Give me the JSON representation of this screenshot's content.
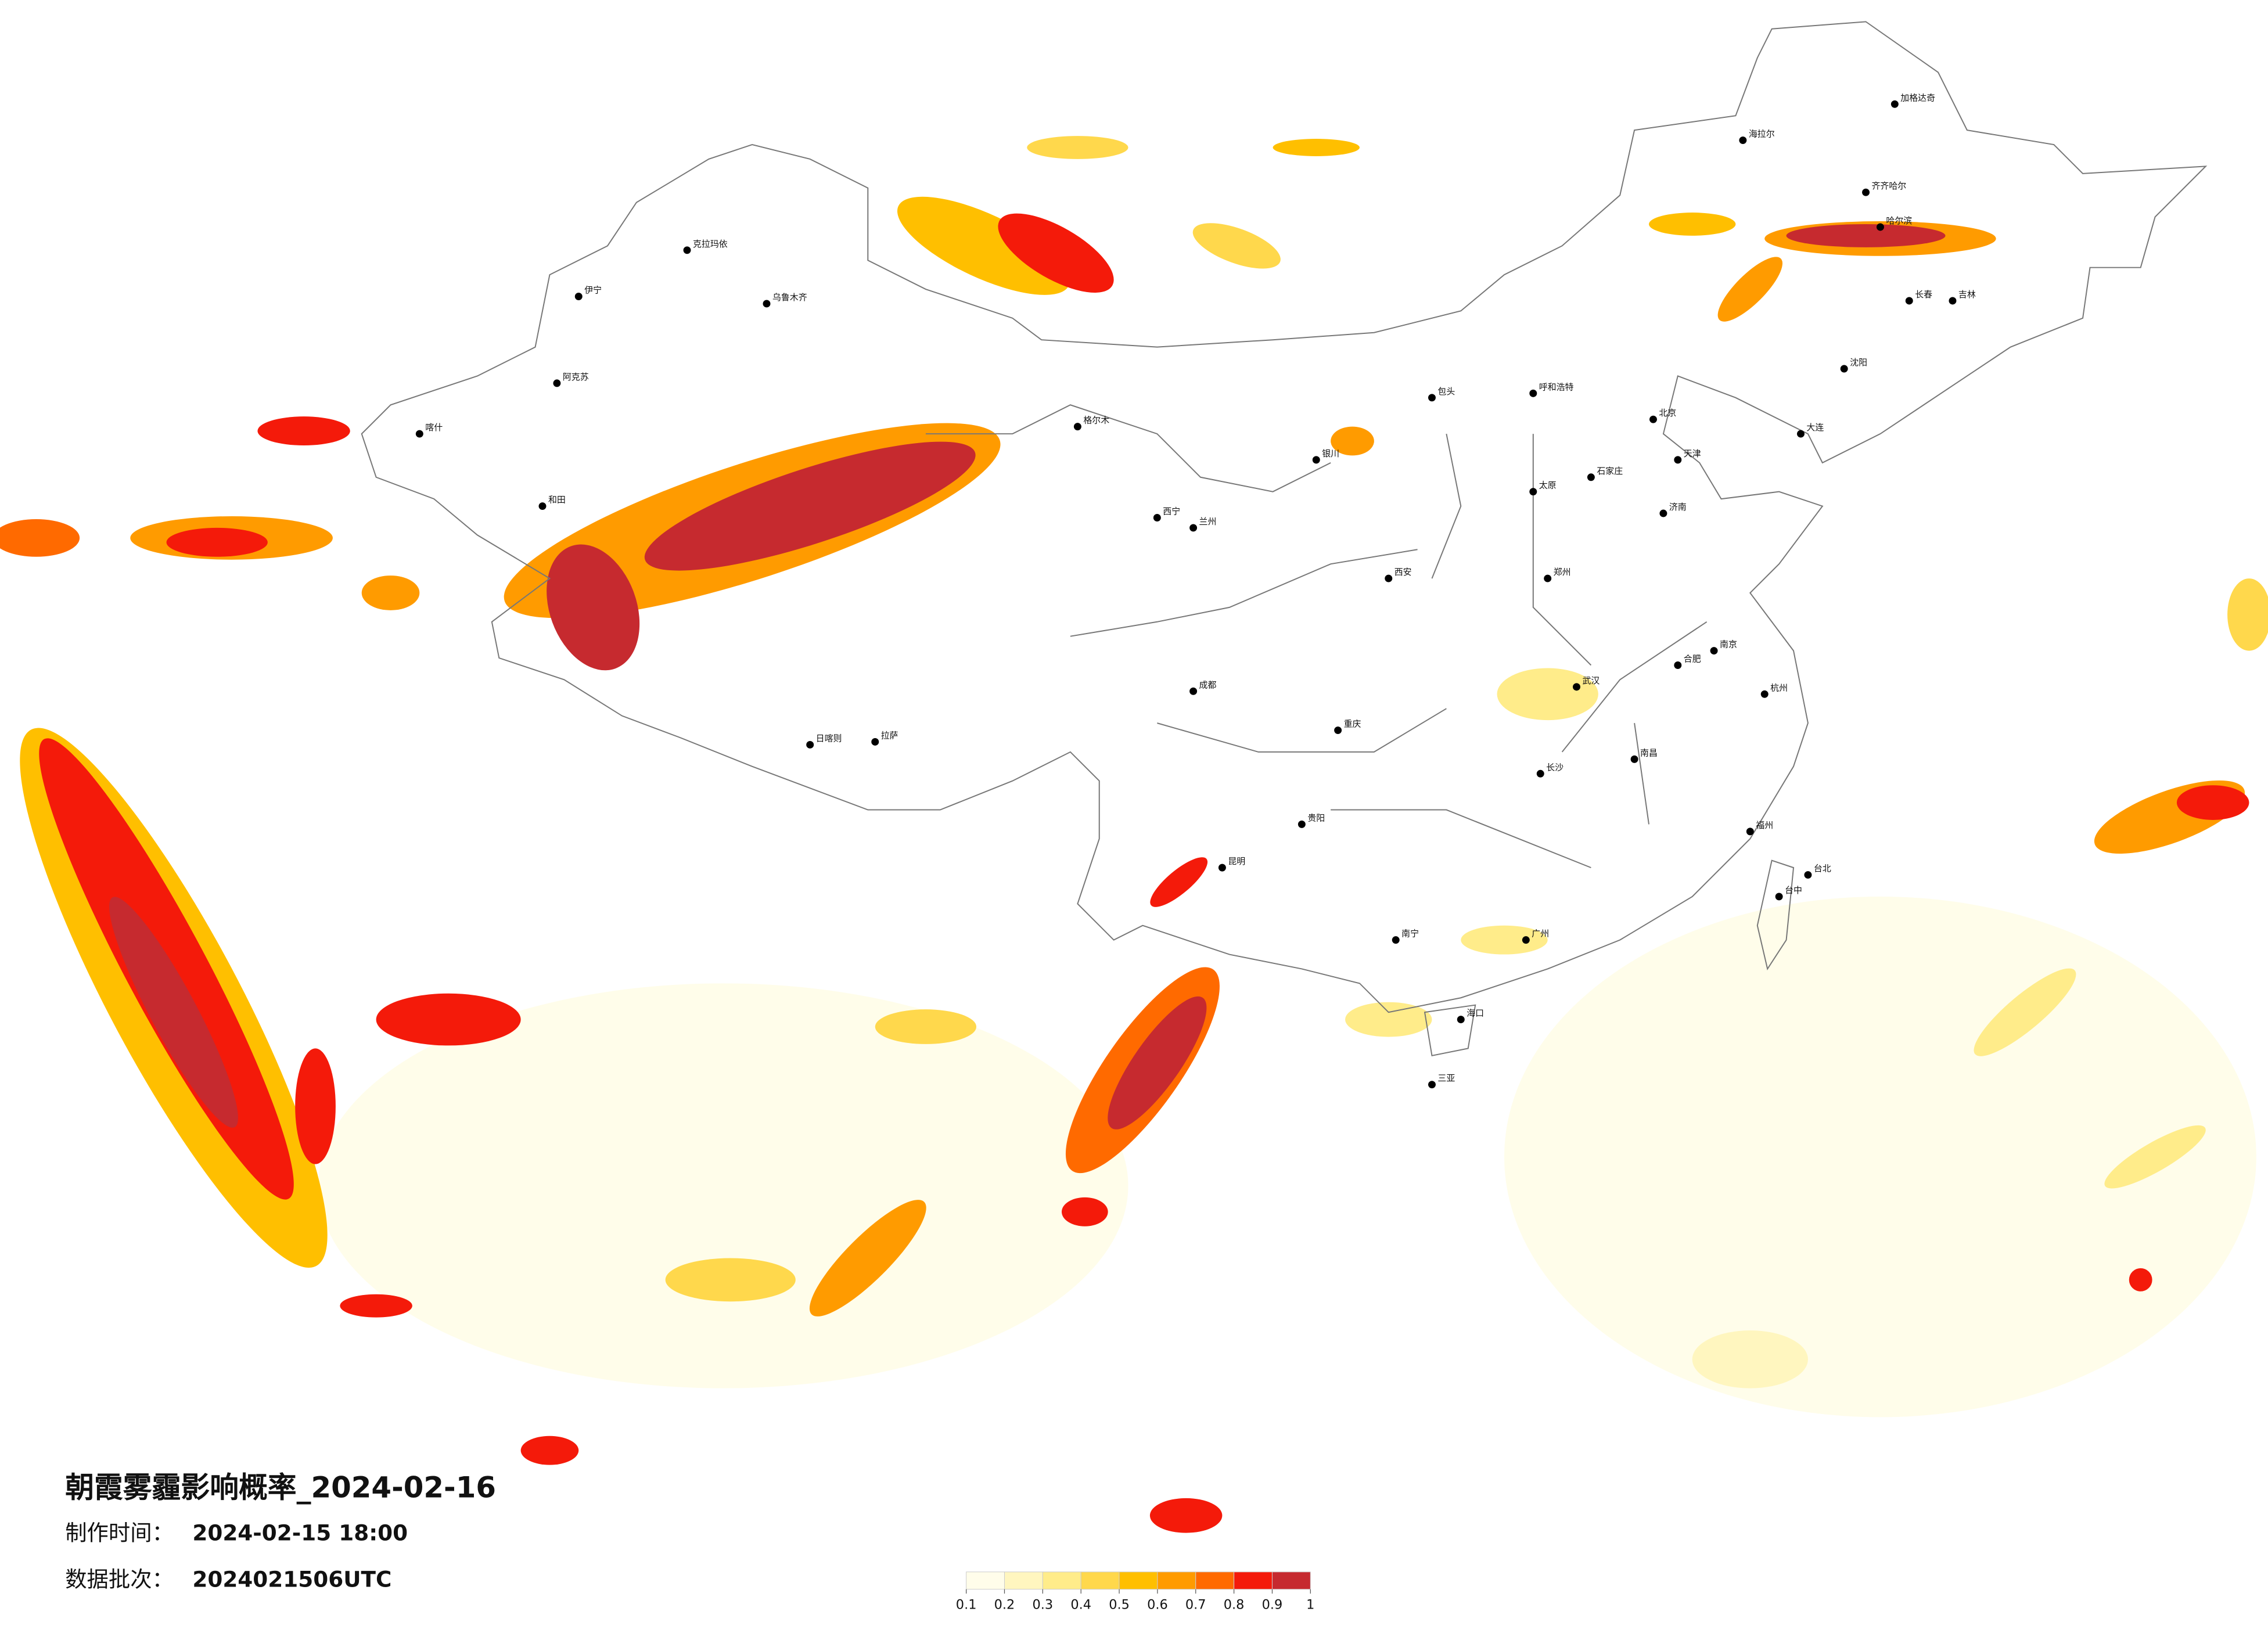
{
  "title": "朝霞雾霾影响概率_2024-02-16",
  "production_time": {
    "label": "制作时间：",
    "value": "2024-02-15 18:00"
  },
  "data_batch": {
    "label": "数据批次：",
    "value": "2024021506UTC"
  },
  "legend": {
    "ticks": [
      0.1,
      0.2,
      0.3,
      0.4,
      0.5,
      0.6,
      0.7,
      0.8,
      0.9,
      1
    ],
    "colors": [
      "#fffdea",
      "#fff6bf",
      "#ffec8a",
      "#ffd84c",
      "#ffbf00",
      "#ff9b00",
      "#ff6a00",
      "#f41a0a",
      "#c62a2f"
    ]
  },
  "cities": [
    "加格达奇",
    "海拉尔",
    "齐齐哈尔",
    "哈尔滨",
    "长春",
    "吉林",
    "沈阳",
    "大连",
    "呼和浩特",
    "包头",
    "北京",
    "天津",
    "石家庄",
    "太原",
    "济南",
    "郑州",
    "西安",
    "银川",
    "兰州",
    "西宁",
    "格尔木",
    "乌鲁木齐",
    "克拉玛依",
    "伊宁",
    "阿克苏",
    "喀什",
    "和田",
    "拉萨",
    "日喀则",
    "成都",
    "重庆",
    "贵阳",
    "昆明",
    "南宁",
    "海口",
    "三亚",
    "广州",
    "长沙",
    "武汉",
    "南昌",
    "合肥",
    "南京",
    "杭州",
    "福州",
    "台北",
    "台中"
  ]
}
